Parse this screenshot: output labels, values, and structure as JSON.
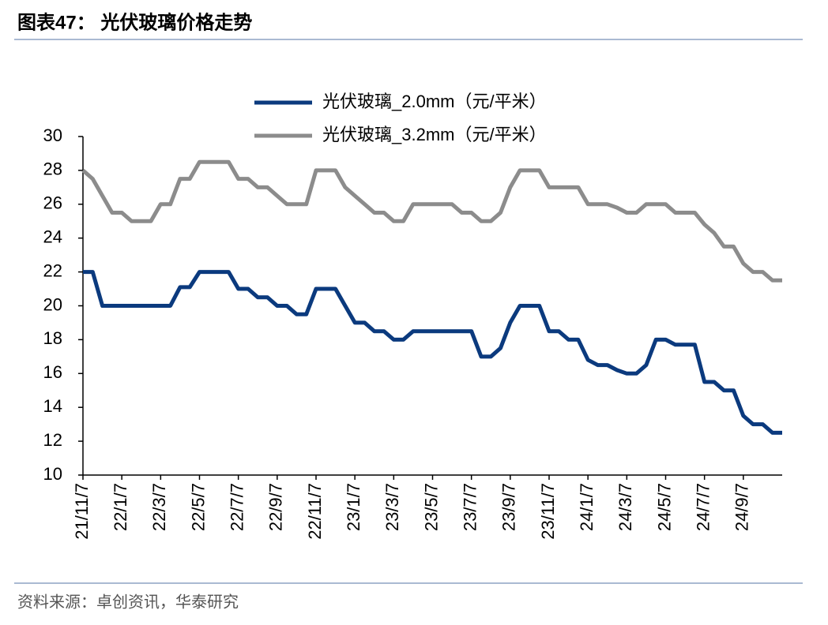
{
  "chart_data": {
    "type": "line",
    "title": "图表47：  光伏玻璃价格走势",
    "source": "资料来源：卓创资讯，华泰研究",
    "categories": [
      "21/11/7",
      null,
      null,
      null,
      "22/1/7",
      null,
      null,
      null,
      "22/3/7",
      null,
      null,
      null,
      "22/5/7",
      null,
      null,
      null,
      "22/7/7",
      null,
      null,
      null,
      "22/9/7",
      null,
      null,
      null,
      "22/11/7",
      null,
      null,
      null,
      "23/1/7",
      null,
      null,
      null,
      "23/3/7",
      null,
      null,
      null,
      "23/5/7",
      null,
      null,
      null,
      "23/7/7",
      null,
      null,
      null,
      "23/9/7",
      null,
      null,
      null,
      "23/11/7",
      null,
      null,
      null,
      "24/1/7",
      null,
      null,
      null,
      "24/3/7",
      null,
      null,
      null,
      "24/5/7",
      null,
      null,
      null,
      "24/7/7",
      null,
      null,
      null,
      "24/9/7",
      null,
      null,
      null,
      null
    ],
    "series": [
      {
        "name": "光伏玻璃_2.0mm（元/平米）",
        "color": "#0b3a7e",
        "values": [
          22,
          22,
          20,
          20,
          20,
          20,
          20,
          20,
          20,
          20,
          21.1,
          21.1,
          22,
          22,
          22,
          22,
          21,
          21,
          20.5,
          20.5,
          20,
          20,
          19.5,
          19.5,
          21,
          21,
          21,
          20,
          19,
          19,
          18.5,
          18.5,
          18,
          18,
          18.5,
          18.5,
          18.5,
          18.5,
          18.5,
          18.5,
          18.5,
          17,
          17,
          17.5,
          19,
          20,
          20,
          20,
          18.5,
          18.5,
          18,
          18,
          16.8,
          16.5,
          16.5,
          16.2,
          16,
          16,
          16.5,
          18,
          18,
          17.7,
          17.7,
          17.7,
          15.5,
          15.5,
          15,
          15,
          13.5,
          13,
          13,
          12.5,
          12.5
        ]
      },
      {
        "name": "光伏玻璃_3.2mm（元/平米）",
        "color": "#8c8c8c",
        "values": [
          28,
          27.5,
          26.5,
          25.5,
          25.5,
          25,
          25,
          25,
          26,
          26,
          27.5,
          27.5,
          28.5,
          28.5,
          28.5,
          28.5,
          27.5,
          27.5,
          27,
          27,
          26.5,
          26,
          26,
          26,
          28,
          28,
          28,
          27,
          26.5,
          26,
          25.5,
          25.5,
          25,
          25,
          26,
          26,
          26,
          26,
          26,
          25.5,
          25.5,
          25,
          25,
          25.5,
          27,
          28,
          28,
          28,
          27,
          27,
          27,
          27,
          26,
          26,
          26,
          25.8,
          25.5,
          25.5,
          26,
          26,
          26,
          25.5,
          25.5,
          25.5,
          24.8,
          24.3,
          23.5,
          23.5,
          22.5,
          22,
          22,
          21.5,
          21.5
        ]
      }
    ],
    "ylim": [
      10,
      30
    ],
    "yticks": [
      10,
      12,
      14,
      16,
      18,
      20,
      22,
      24,
      26,
      28,
      30
    ],
    "grid": false
  }
}
